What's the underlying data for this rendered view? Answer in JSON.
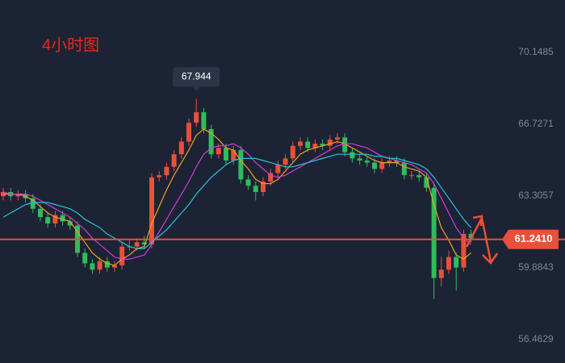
{
  "chart_data": {
    "type": "candlestick",
    "title": "4小时图",
    "ylim": [
      55.35,
      72.65
    ],
    "yticks": [
      {
        "value": 70.1485,
        "label": "70.1485"
      },
      {
        "value": 66.7271,
        "label": "66.7271"
      },
      {
        "value": 63.3057,
        "label": "63.3057"
      },
      {
        "value": 59.8843,
        "label": "59.8843"
      },
      {
        "value": 56.4629,
        "label": "56.4629"
      }
    ],
    "up_color": "#e8503a",
    "down_color": "#2ebd5b",
    "series": {
      "open": [
        63.3,
        63.5,
        63.3,
        63.4,
        63.2,
        62.7,
        62.3,
        62.0,
        62.4,
        62.1,
        61.9,
        60.6,
        60.1,
        59.8,
        60.2,
        59.9,
        60.0,
        60.9,
        60.9,
        61.1,
        61.0,
        64.2,
        64.3,
        64.7,
        65.3,
        65.9,
        66.8,
        67.3,
        66.5,
        65.3,
        65.6,
        65.0,
        65.5,
        64.1,
        63.8,
        63.5,
        64.0,
        64.4,
        64.8,
        65.1,
        65.7,
        65.9,
        65.6,
        65.8,
        65.7,
        66.0,
        66.1,
        65.4,
        65.1,
        65.0,
        64.9,
        64.6,
        64.9,
        65.0,
        64.9,
        64.3,
        64.3,
        64.2,
        63.7,
        59.4,
        59.8,
        60.4,
        59.9,
        61.5
      ],
      "high": [
        63.7,
        63.7,
        63.6,
        63.6,
        63.4,
        62.9,
        62.5,
        62.6,
        62.6,
        62.3,
        62.1,
        60.8,
        60.3,
        60.4,
        60.4,
        60.2,
        61.1,
        61.2,
        61.3,
        61.4,
        64.4,
        64.5,
        64.9,
        65.5,
        66.1,
        67.0,
        67.944,
        67.5,
        66.7,
        65.8,
        65.8,
        65.7,
        65.7,
        64.3,
        64.0,
        64.2,
        64.6,
        65.0,
        65.3,
        65.9,
        66.1,
        66.1,
        66.0,
        66.0,
        66.2,
        66.3,
        66.3,
        65.6,
        65.3,
        65.2,
        65.1,
        65.1,
        65.2,
        65.2,
        65.1,
        64.5,
        64.5,
        64.4,
        63.9,
        60.4,
        60.7,
        60.6,
        61.7,
        61.7
      ],
      "low": [
        63.1,
        63.1,
        63.1,
        63.0,
        62.5,
        62.1,
        61.8,
        61.8,
        61.9,
        61.7,
        60.4,
        59.9,
        59.6,
        59.6,
        59.7,
        59.7,
        59.8,
        60.7,
        60.7,
        60.8,
        60.8,
        64.0,
        64.1,
        64.5,
        65.1,
        65.7,
        66.6,
        66.3,
        65.1,
        65.1,
        64.8,
        64.8,
        63.9,
        63.6,
        63.1,
        63.3,
        63.8,
        64.2,
        64.6,
        64.9,
        65.5,
        65.4,
        65.4,
        65.5,
        65.5,
        65.8,
        65.2,
        64.9,
        64.8,
        64.7,
        64.4,
        64.4,
        64.7,
        64.7,
        64.1,
        64.1,
        64.0,
        63.5,
        58.4,
        59.0,
        59.6,
        58.8,
        59.7,
        61.1
      ],
      "close": [
        63.5,
        63.3,
        63.4,
        63.2,
        62.7,
        62.3,
        62.0,
        62.4,
        62.1,
        61.9,
        60.6,
        60.1,
        59.8,
        60.2,
        59.9,
        60.0,
        60.9,
        60.9,
        61.1,
        61.0,
        64.2,
        64.3,
        64.7,
        65.3,
        65.9,
        66.8,
        67.3,
        66.5,
        65.3,
        65.6,
        65.0,
        65.5,
        64.1,
        63.8,
        63.5,
        64.0,
        64.4,
        64.8,
        65.1,
        65.7,
        65.9,
        65.6,
        65.8,
        65.7,
        66.0,
        66.1,
        65.4,
        65.1,
        65.0,
        64.9,
        64.6,
        64.9,
        65.0,
        64.9,
        64.3,
        64.3,
        64.2,
        63.7,
        59.4,
        59.8,
        60.4,
        59.9,
        61.5,
        61.3
      ]
    },
    "ma_lines": [
      {
        "color": "#f0a020",
        "values": [
          63.4,
          63.4,
          63.4,
          63.3,
          63.1,
          62.8,
          62.5,
          62.3,
          62.2,
          62.1,
          61.6,
          61.1,
          60.6,
          60.3,
          60.1,
          60.0,
          60.3,
          60.5,
          60.8,
          60.9,
          62.0,
          62.8,
          63.6,
          64.3,
          64.9,
          65.5,
          66.2,
          66.5,
          66.3,
          66.0,
          65.6,
          65.5,
          65.0,
          64.6,
          64.1,
          63.9,
          63.9,
          64.1,
          64.5,
          64.9,
          65.3,
          65.5,
          65.6,
          65.7,
          65.8,
          65.9,
          65.8,
          65.6,
          65.4,
          65.2,
          65.0,
          64.9,
          64.9,
          64.9,
          64.7,
          64.6,
          64.5,
          64.2,
          62.9,
          61.8,
          61.2,
          60.5,
          60.3,
          60.6
        ]
      },
      {
        "color": "#d63ad6",
        "values": [
          63.5,
          63.4,
          63.4,
          63.4,
          63.3,
          63.1,
          62.9,
          62.7,
          62.5,
          62.3,
          62.0,
          61.7,
          61.3,
          61.0,
          60.7,
          60.4,
          60.3,
          60.3,
          60.4,
          60.5,
          61.0,
          61.6,
          62.2,
          62.8,
          63.4,
          64.0,
          64.7,
          65.3,
          65.6,
          65.7,
          65.7,
          65.8,
          65.6,
          65.3,
          64.9,
          64.6,
          64.3,
          64.2,
          64.3,
          64.5,
          64.7,
          64.9,
          65.1,
          65.3,
          65.5,
          65.7,
          65.8,
          65.8,
          65.7,
          65.6,
          65.4,
          65.2,
          65.1,
          65.0,
          64.9,
          64.8,
          64.6,
          64.4,
          63.9,
          63.2,
          62.5,
          61.8,
          61.3,
          61.0
        ]
      },
      {
        "color": "#2bc0d8",
        "values": [
          62.3,
          62.5,
          62.7,
          62.9,
          63.0,
          63.0,
          63.0,
          62.9,
          62.8,
          62.7,
          62.5,
          62.2,
          62.0,
          61.8,
          61.5,
          61.3,
          61.1,
          60.9,
          60.8,
          60.8,
          61.1,
          61.4,
          61.7,
          62.1,
          62.5,
          62.9,
          63.4,
          63.8,
          64.2,
          64.5,
          64.8,
          65.0,
          65.1,
          65.1,
          65.1,
          65.0,
          64.9,
          64.8,
          64.7,
          64.7,
          64.8,
          64.9,
          65.0,
          65.1,
          65.2,
          65.3,
          65.3,
          65.3,
          65.3,
          65.3,
          65.2,
          65.2,
          65.1,
          65.1,
          65.0,
          64.9,
          64.8,
          64.6,
          64.2,
          63.7,
          63.2,
          62.7,
          62.2,
          61.8
        ]
      }
    ],
    "price_line": {
      "value": 61.241,
      "label": "61.2410",
      "color": "#e8503a"
    }
  }
}
